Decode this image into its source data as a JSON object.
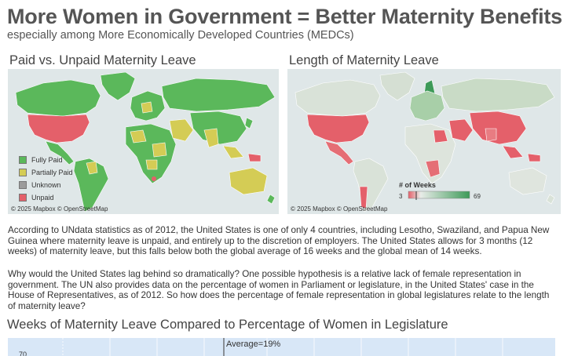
{
  "header": {
    "title": "More Women in Government = Better Maternity Benefits",
    "subtitle": "especially among More Economically Developed Countries (MEDCs)"
  },
  "map_left": {
    "title": "Paid vs. Unpaid Maternity Leave",
    "attribution": "© 2025 Mapbox © OpenStreetMap",
    "legend": [
      {
        "label": "Fully Paid",
        "color": "#5bb85b"
      },
      {
        "label": "Partially Paid",
        "color": "#d4cc55"
      },
      {
        "label": "Unknown",
        "color": "#9b9b9b"
      },
      {
        "label": "Unpaid",
        "color": "#e4606a"
      }
    ]
  },
  "map_right": {
    "title": "Length of Maternity Leave",
    "attribution": "© 2025 Mapbox © OpenStreetMap",
    "legend": {
      "title": "# of Weeks",
      "min_label": "3",
      "max_label": "69",
      "min_color": "#e4606a",
      "mid_color": "#e8ece8",
      "max_color": "#3d9a58"
    }
  },
  "text": {
    "paragraph1": "According to UNdata statistics as of 2012, the United States is one of only 4 countries, including Lesotho, Swaziland, and Papua New Guinea where maternity leave is unpaid, and entirely up to the discretion of employers. The United States allows for 3 months (12 weeks) of maternity leave, but this falls below both the global average of 16 weeks and the global mean of 14 weeks.",
    "paragraph2": "Why would the United States lag behind so dramatically? One possible hypothesis is a relative lack of female representation in government. The UN also provides data on the percentage of women in Parliament or legislature, in the United States' case in the House of Representatives, as of 2012. So how does the percentage of female representation in global legislatures relate to the length of maternity leave?"
  },
  "chart": {
    "title": "Weeks of Maternity Leave Compared to Percentage of Women in Legislature",
    "y_tick_label": "70",
    "average_label": "Average=19%"
  },
  "chart_data": {
    "type": "scatter",
    "title": "Weeks of Maternity Leave Compared to Percentage of Women in Legislature",
    "y_ticks": [
      70
    ],
    "reference_lines": [
      {
        "axis": "x",
        "value": 19,
        "label": "Average=19%"
      }
    ]
  }
}
